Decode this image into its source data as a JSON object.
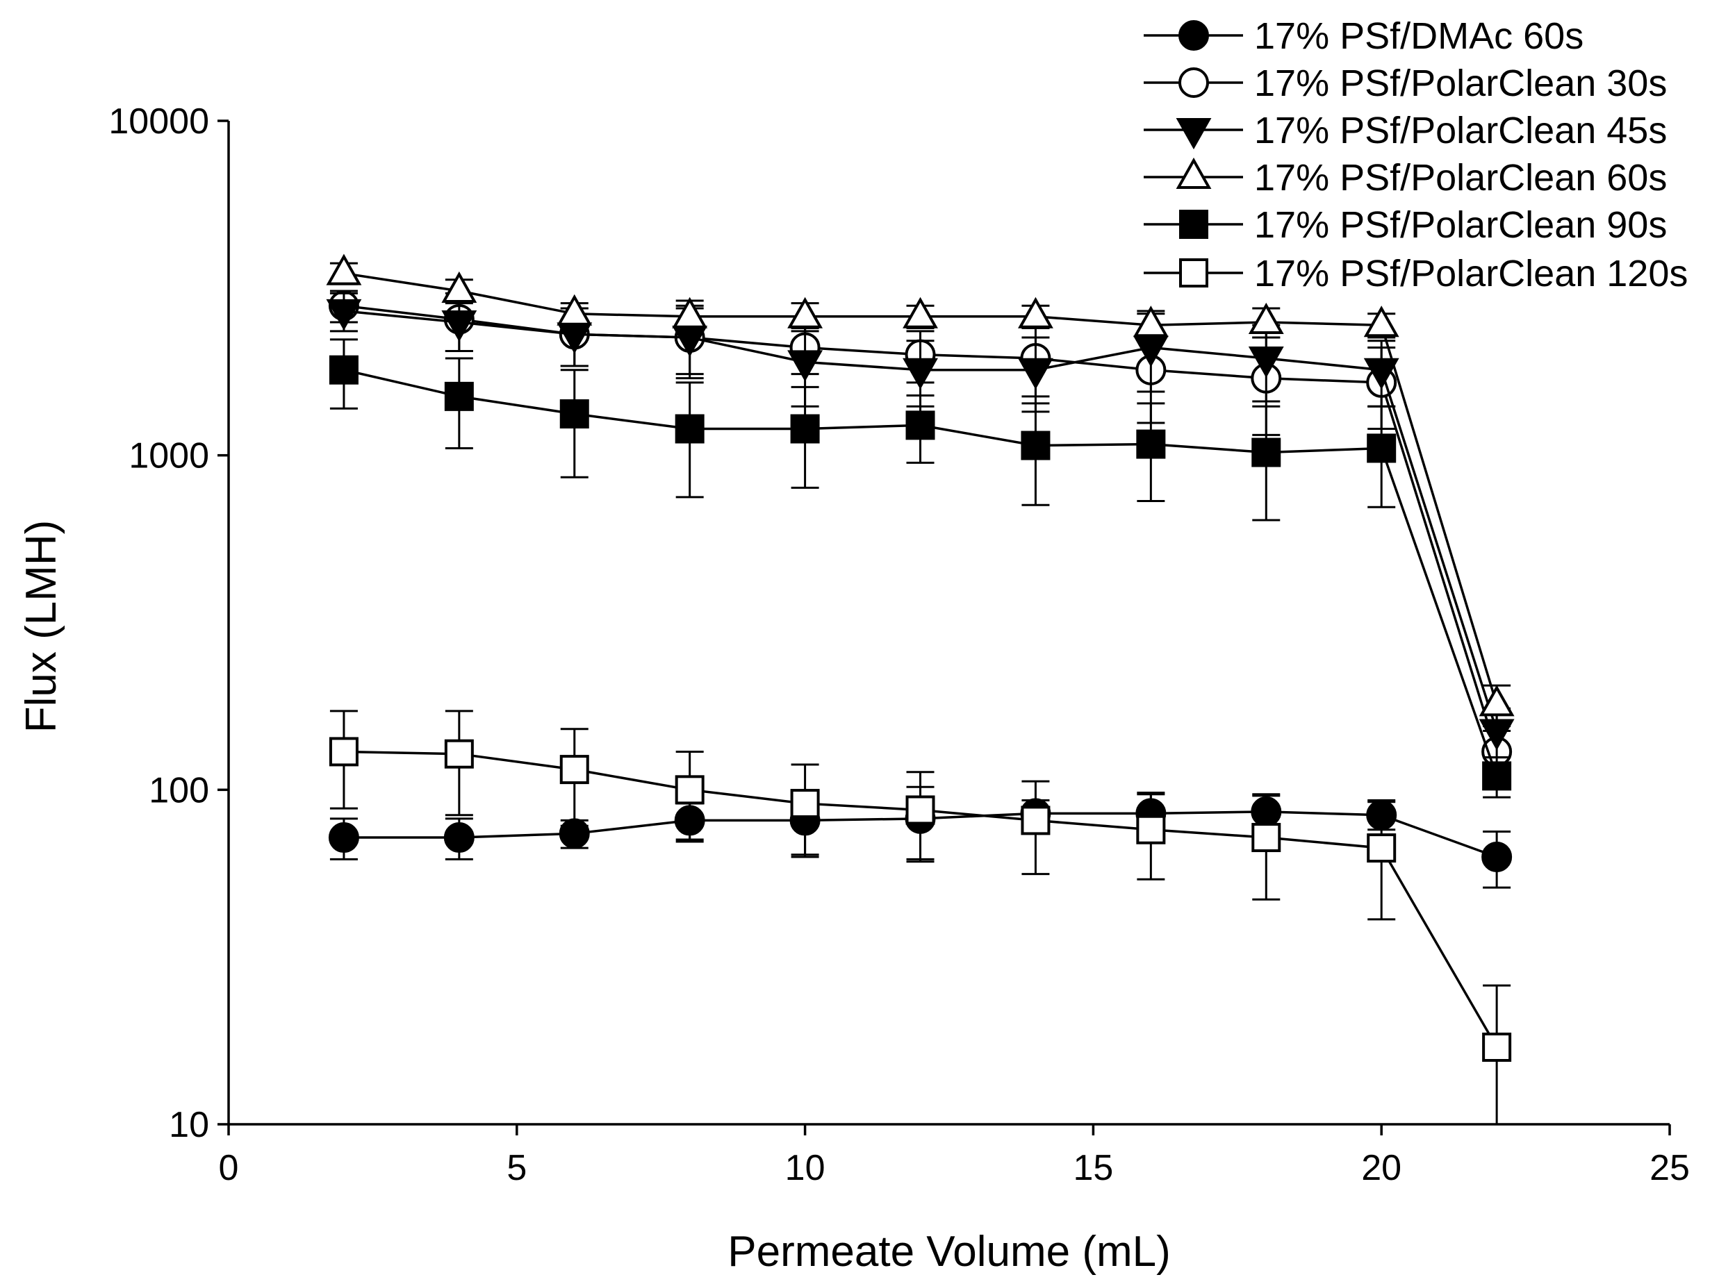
{
  "colors": {
    "ink": "#000000",
    "background": "#ffffff"
  },
  "chart_data": {
    "type": "line",
    "title": "",
    "xlabel": "Permeate Volume (mL)",
    "ylabel": "Flux (LMH)",
    "xlim": [
      0,
      25
    ],
    "ylim": [
      10,
      10000
    ],
    "yscale": "log",
    "grid": false,
    "legend_position": "top-right",
    "x_ticks": [
      0,
      5,
      10,
      15,
      20,
      25
    ],
    "x_tick_labels": [
      "0",
      "5",
      "10",
      "15",
      "20",
      "25"
    ],
    "y_ticks": [
      10,
      100,
      1000,
      10000
    ],
    "y_tick_labels": [
      "10",
      "100",
      "1000",
      "10000"
    ],
    "x": [
      2,
      4,
      6,
      8,
      10,
      12,
      14,
      16,
      18,
      20,
      22
    ],
    "series": [
      {
        "name": "17% PSf/DMAc 60s",
        "marker": "circle",
        "fill": "#000000",
        "values": [
          72,
          72,
          74,
          81,
          81,
          82,
          85,
          85,
          86,
          84,
          63
        ],
        "errors": [
          10,
          10,
          7,
          10,
          17,
          20,
          8,
          12,
          10,
          8,
          12
        ]
      },
      {
        "name": "17% PSf/PolarClean 30s",
        "marker": "circle",
        "fill": "#ffffff",
        "values": [
          2800,
          2550,
          2300,
          2250,
          2100,
          2000,
          1950,
          1800,
          1700,
          1650,
          130
        ],
        "errors": [
          300,
          500,
          450,
          500,
          350,
          350,
          450,
          550,
          550,
          450,
          20
        ]
      },
      {
        "name": "17% PSf/PolarClean 45s",
        "marker": "triangle-down",
        "fill": "#000000",
        "values": [
          2700,
          2500,
          2300,
          2250,
          1900,
          1800,
          1800,
          2100,
          1950,
          1800,
          150
        ],
        "errors": [
          350,
          450,
          450,
          550,
          500,
          400,
          450,
          550,
          500,
          400,
          25
        ]
      },
      {
        "name": "17% PSf/PolarClean 60s",
        "marker": "triangle-up",
        "fill": "#ffffff",
        "values": [
          3500,
          3100,
          2650,
          2600,
          2600,
          2600,
          2600,
          2450,
          2500,
          2450,
          180
        ],
        "errors": [
          250,
          250,
          200,
          300,
          250,
          200,
          200,
          250,
          250,
          200,
          25
        ]
      },
      {
        "name": "17% PSf/PolarClean 90s",
        "marker": "square",
        "fill": "#000000",
        "values": [
          1800,
          1500,
          1330,
          1200,
          1200,
          1230,
          1070,
          1080,
          1020,
          1050,
          110
        ],
        "errors": [
          420,
          450,
          470,
          450,
          400,
          280,
          360,
          350,
          380,
          350,
          15
        ]
      },
      {
        "name": "17% PSf/PolarClean 120s",
        "marker": "square",
        "fill": "#ffffff",
        "values": [
          130,
          128,
          115,
          100,
          91,
          87,
          81,
          76,
          72,
          67,
          17
        ],
        "errors": [
          42,
          44,
          37,
          30,
          28,
          26,
          25,
          22,
          25,
          26,
          9
        ]
      }
    ]
  }
}
